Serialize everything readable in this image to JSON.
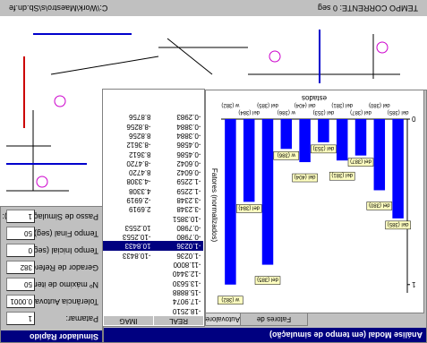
{
  "diagram_window": {
    "path": "C:\\Work\\Maestro\\s\\Sb.dn.fe",
    "status": "TEMPO CORRENTE: 0 seg"
  },
  "simulator": {
    "title": "Simulador Rápido",
    "fields": [
      {
        "label": "Patamar:",
        "value": "1"
      },
      {
        "label": "Tolerância Autovalor:",
        "value": "0.0001"
      },
      {
        "label": "Nº máximo de iterações:",
        "value": "50"
      },
      {
        "label": "Gerador de Referência:",
        "value": "382"
      },
      {
        "label": "Tempo Inicial (seg):",
        "value": "0"
      },
      {
        "label": "Tempo Final (seg):",
        "value": "50"
      },
      {
        "label": "Passo de Simulação (seg):",
        "value": "1"
      }
    ]
  },
  "modal_window": {
    "title": "Análise Modal (em tempo de simulação)",
    "tabs": [
      "Autovalores",
      "Fatores de Participação"
    ],
    "table": {
      "columns": [
        "REAL",
        "IMAG"
      ],
      "selected": 7,
      "rows": [
        [
          "-18.2510"
        ],
        [
          "-17.9074"
        ],
        [
          "-15.8888"
        ],
        [
          "-13.5630"
        ],
        [
          "-12.3440"
        ],
        [
          "-11.8000"
        ],
        [
          "-1.0236",
          "-10.8433"
        ],
        [
          "-1.0236",
          "10.8433"
        ],
        [
          "-0.7980",
          "-10.2553"
        ],
        [
          "-0.7980",
          "10.2553"
        ],
        [
          "-10.3851"
        ],
        [
          "-3.2348",
          "2.6919"
        ],
        [
          "-3.2348",
          "-2.6919"
        ],
        [
          "-1.2259",
          "4.3308"
        ],
        [
          "-1.2259",
          "-4.3308"
        ],
        [
          "-0.6042",
          "8.4720"
        ],
        [
          "-0.6042",
          "-8.4720"
        ],
        [
          "-0.4586",
          "8.3612"
        ],
        [
          "-0.4586",
          "-8.3612"
        ],
        [
          "-0.3884",
          "8.8256"
        ],
        [
          "-0.3884",
          "-8.8256"
        ],
        [
          "-0.2983",
          "8.8756"
        ]
      ]
    },
    "chart_data": {
      "type": "bar",
      "x_label": "estados",
      "y_label": "Fatores (normalizados)",
      "categories": [
        "del (385)",
        "del (380)",
        "del (387)",
        "del (381)",
        "del (353)",
        "del (404)",
        "w (386)",
        "del (385)",
        "del (384)",
        "w (382)"
      ],
      "values": [
        0.6,
        0.43,
        0.22,
        0.25,
        0.14,
        0.26,
        0.18,
        0.88,
        0.5,
        1.0
      ],
      "color": "#0000ff",
      "ylim": [
        0,
        1.05
      ],
      "yticks": [
        0,
        1
      ]
    }
  }
}
